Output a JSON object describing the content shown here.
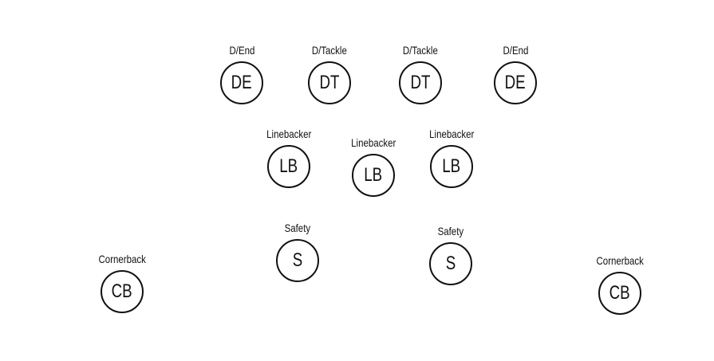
{
  "positions": {
    "de_left": {
      "label": "D/End",
      "abbr": "DE"
    },
    "dt_left": {
      "label": "D/Tackle",
      "abbr": "DT"
    },
    "dt_right": {
      "label": "D/Tackle",
      "abbr": "DT"
    },
    "de_right": {
      "label": "D/End",
      "abbr": "DE"
    },
    "lb_left": {
      "label": "Linebacker",
      "abbr": "LB"
    },
    "lb_mid": {
      "label": "Linebacker",
      "abbr": "LB"
    },
    "lb_right": {
      "label": "Linebacker",
      "abbr": "LB"
    },
    "s_left": {
      "label": "Safety",
      "abbr": "S"
    },
    "s_right": {
      "label": "Safety",
      "abbr": "S"
    },
    "cb_left": {
      "label": "Cornerback",
      "abbr": "CB"
    },
    "cb_right": {
      "label": "Cornerback",
      "abbr": "CB"
    }
  },
  "colors": {
    "stroke": "#111111",
    "background": "#ffffff"
  }
}
